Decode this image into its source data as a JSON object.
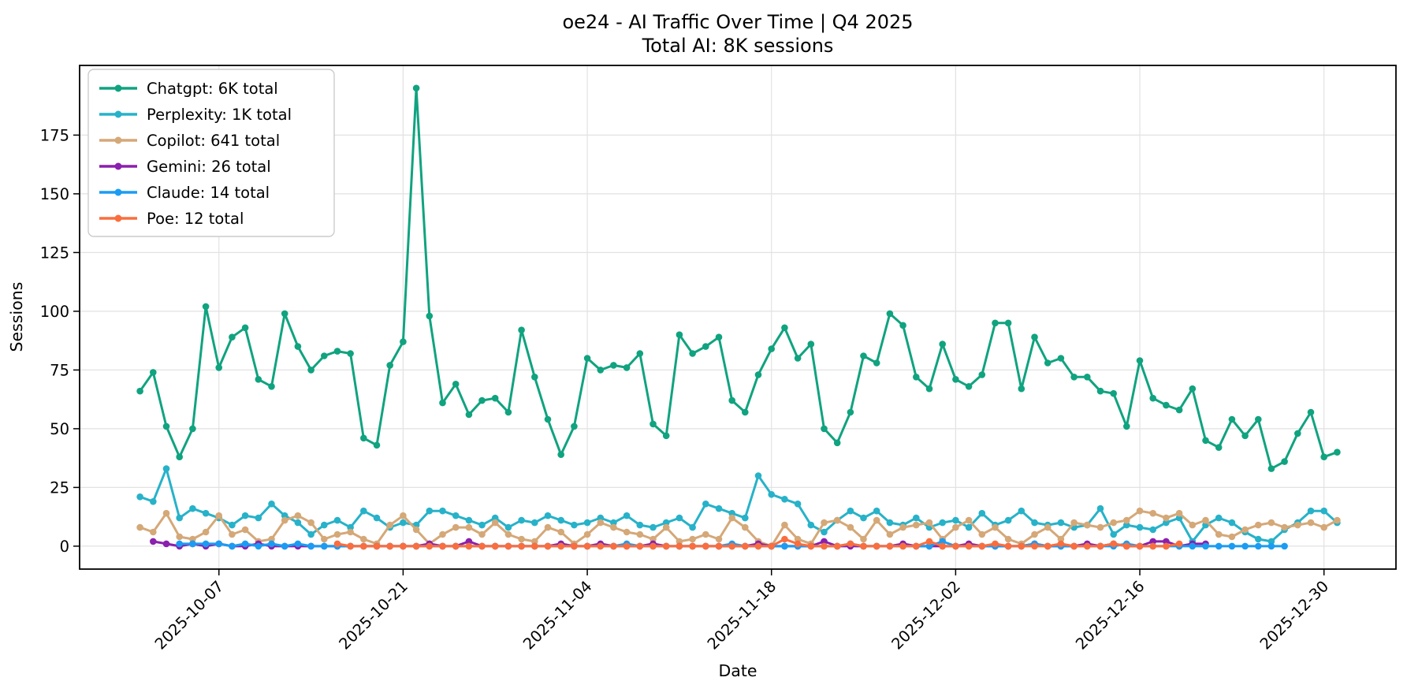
{
  "figure": {
    "background": "#ffffff",
    "frame_color": "#000000",
    "grid_color": "#e2e2e2",
    "text_color": "#000000"
  },
  "chart_data": {
    "type": "line",
    "title": "oe24 - AI Traffic Over Time | Q4 2025",
    "subtitle": "Total AI: 8K sessions",
    "xlabel": "Date",
    "ylabel": "Sessions",
    "grid": true,
    "legend_position": "upper-left",
    "num_days": 92,
    "x_start_date": "2025-10-01",
    "x_tick_day_index": [
      6,
      20,
      34,
      48,
      62,
      76,
      90
    ],
    "x_tick_labels": [
      "2025-10-07",
      "2025-10-21",
      "2025-11-04",
      "2025-11-18",
      "2025-12-02",
      "2025-12-16",
      "2025-12-30"
    ],
    "y_ticks": [
      0,
      25,
      50,
      75,
      100,
      125,
      150,
      175
    ],
    "ylim": [
      -10,
      205
    ],
    "series": [
      {
        "name": "Chatgpt",
        "legend_label": "Chatgpt: 6K total",
        "total_label": "6K",
        "color": "#10a37f",
        "values": [
          66,
          74,
          51,
          38,
          50,
          102,
          76,
          89,
          93,
          71,
          68,
          99,
          85,
          75,
          81,
          83,
          82,
          46,
          43,
          77,
          87,
          195,
          98,
          61,
          69,
          56,
          62,
          63,
          57,
          92,
          72,
          54,
          39,
          51,
          80,
          75,
          77,
          76,
          82,
          52,
          47,
          90,
          82,
          85,
          89,
          62,
          57,
          73,
          84,
          93,
          80,
          86,
          50,
          44,
          57,
          81,
          78,
          99,
          94,
          72,
          67,
          86,
          71,
          68,
          73,
          95,
          95,
          67,
          89,
          78,
          80,
          72,
          72,
          66,
          65,
          51,
          79,
          63,
          60,
          58,
          67,
          45,
          42,
          54,
          47,
          54,
          33,
          36,
          48,
          57,
          38,
          40
        ]
      },
      {
        "name": "Perplexity",
        "legend_label": "Perplexity: 1K total",
        "total_label": "1K",
        "color": "#27b2c9",
        "values": [
          21,
          19,
          33,
          12,
          16,
          14,
          12,
          9,
          13,
          12,
          18,
          13,
          10,
          5,
          9,
          11,
          8,
          15,
          12,
          8,
          10,
          9,
          15,
          15,
          13,
          11,
          9,
          12,
          8,
          11,
          10,
          13,
          11,
          9,
          10,
          12,
          10,
          13,
          9,
          8,
          10,
          12,
          8,
          18,
          16,
          14,
          12,
          30,
          22,
          20,
          18,
          9,
          6,
          11,
          15,
          12,
          15,
          10,
          9,
          12,
          8,
          10,
          11,
          8,
          14,
          9,
          11,
          15,
          10,
          9,
          10,
          8,
          9,
          16,
          5,
          9,
          8,
          7,
          10,
          12,
          2,
          9,
          12,
          10,
          6,
          3,
          2,
          7,
          10,
          15,
          15,
          10
        ]
      },
      {
        "name": "Copilot",
        "legend_label": "Copilot: 641 total",
        "total_label": "641",
        "color": "#d5a878",
        "values": [
          8,
          6,
          14,
          4,
          3,
          6,
          13,
          5,
          7,
          2,
          3,
          11,
          13,
          10,
          3,
          5,
          6,
          3,
          1,
          9,
          13,
          7,
          1,
          5,
          8,
          8,
          5,
          10,
          5,
          3,
          2,
          8,
          6,
          1,
          5,
          10,
          8,
          6,
          5,
          3,
          8,
          2,
          3,
          5,
          3,
          12,
          8,
          2,
          0,
          9,
          3,
          1,
          10,
          11,
          8,
          3,
          11,
          5,
          8,
          9,
          10,
          3,
          8,
          11,
          5,
          8,
          3,
          1,
          5,
          8,
          3,
          10,
          9,
          8,
          10,
          11,
          15,
          14,
          12,
          14,
          9,
          11,
          5,
          4,
          7,
          9,
          10,
          8,
          9,
          10,
          8,
          11
        ]
      },
      {
        "name": "Gemini",
        "legend_label": "Gemini: 26 total",
        "total_label": "26",
        "color": "#8b1fae",
        "values": [
          null,
          2,
          1,
          0,
          1,
          0,
          1,
          0,
          0,
          1,
          0,
          0,
          0,
          0,
          0,
          0,
          0,
          0,
          0,
          0,
          0,
          0,
          1,
          0,
          0,
          2,
          0,
          0,
          0,
          0,
          0,
          0,
          1,
          0,
          0,
          1,
          0,
          0,
          0,
          1,
          0,
          0,
          0,
          0,
          0,
          0,
          0,
          1,
          0,
          0,
          0,
          0,
          2,
          0,
          0,
          0,
          0,
          0,
          1,
          0,
          0,
          0,
          0,
          1,
          0,
          0,
          0,
          0,
          1,
          0,
          0,
          0,
          1,
          0,
          1,
          0,
          0,
          2,
          2,
          0,
          1,
          1,
          null,
          null,
          null,
          null,
          null,
          null,
          null,
          null,
          null,
          null
        ]
      },
      {
        "name": "Claude",
        "legend_label": "Claude: 14 total",
        "total_label": "14",
        "color": "#1b9cf2",
        "values": [
          null,
          null,
          null,
          1,
          1,
          1,
          1,
          0,
          1,
          0,
          1,
          0,
          1,
          0,
          0,
          0,
          0,
          0,
          0,
          0,
          0,
          0,
          0,
          0,
          0,
          0,
          0,
          0,
          0,
          0,
          0,
          0,
          0,
          0,
          0,
          0,
          0,
          1,
          0,
          0,
          0,
          0,
          0,
          0,
          0,
          1,
          0,
          0,
          0,
          0,
          0,
          0,
          0,
          0,
          1,
          0,
          0,
          0,
          0,
          0,
          0,
          2,
          0,
          0,
          0,
          0,
          0,
          0,
          1,
          0,
          0,
          0,
          0,
          0,
          0,
          1,
          0,
          0,
          0,
          0,
          0,
          0,
          0,
          0,
          0,
          0,
          0,
          0,
          null,
          null,
          null,
          null
        ]
      },
      {
        "name": "Poe",
        "legend_label": "Poe: 12 total",
        "total_label": "12",
        "color": "#fa6e3e",
        "values": [
          null,
          null,
          null,
          null,
          null,
          null,
          null,
          null,
          null,
          null,
          null,
          null,
          null,
          null,
          null,
          1,
          0,
          0,
          0,
          0,
          0,
          0,
          0,
          0,
          0,
          0,
          0,
          0,
          0,
          0,
          0,
          0,
          0,
          0,
          0,
          0,
          0,
          0,
          0,
          0,
          0,
          0,
          0,
          0,
          0,
          0,
          0,
          0,
          0,
          3,
          1,
          0,
          0,
          0,
          1,
          0,
          0,
          0,
          0,
          0,
          2,
          0,
          0,
          0,
          0,
          1,
          0,
          0,
          0,
          0,
          1,
          0,
          0,
          0,
          1,
          0,
          0,
          0,
          0,
          1,
          null,
          null,
          null,
          null,
          null,
          null,
          null,
          null,
          null,
          null,
          null,
          null
        ]
      }
    ]
  }
}
